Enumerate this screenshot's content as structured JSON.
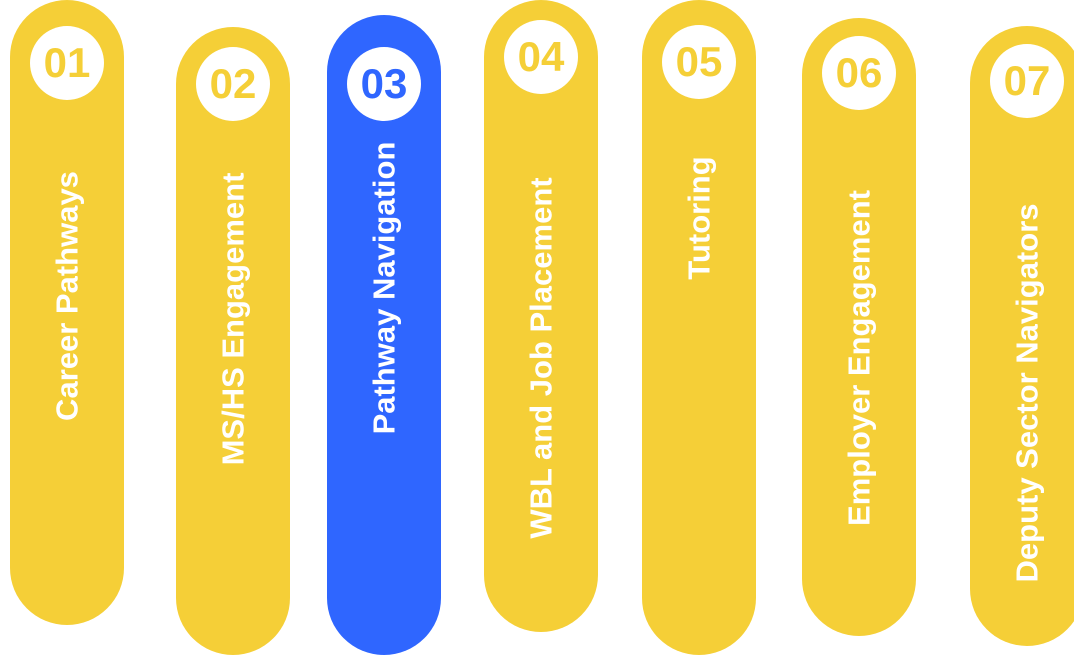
{
  "colors": {
    "default": "#F5CF37",
    "active": "#2F66FF",
    "badge_bg": "#FFFFFF",
    "label": "#FFFFFF"
  },
  "steps": [
    {
      "number": "01",
      "label": "Career Pathways",
      "active": false
    },
    {
      "number": "02",
      "label": "MS/HS Engagement",
      "active": false
    },
    {
      "number": "03",
      "label": "Pathway Navigation",
      "active": true
    },
    {
      "number": "04",
      "label": "WBL and Job Placement",
      "active": false
    },
    {
      "number": "05",
      "label": "Tutoring",
      "active": false
    },
    {
      "number": "06",
      "label": "Employer Engagement",
      "active": false
    },
    {
      "number": "07",
      "label": "Deputy Sector Navigators",
      "active": false
    }
  ]
}
